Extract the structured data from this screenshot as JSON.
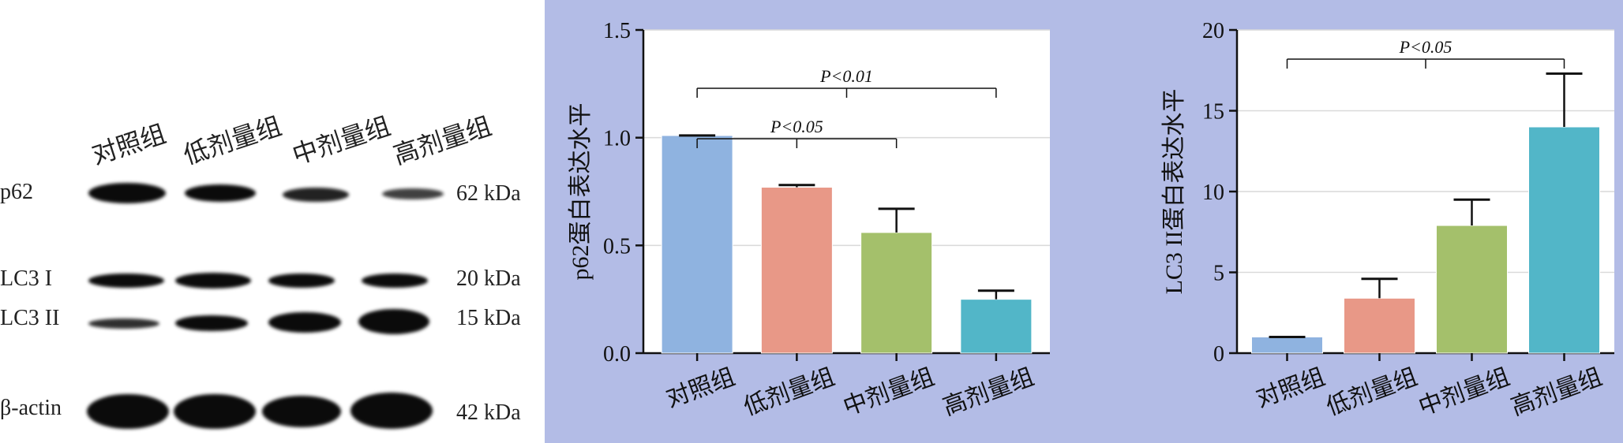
{
  "blot": {
    "lanes": [
      "对照组",
      "低剂量组",
      "中剂量组",
      "高剂量组"
    ],
    "rows": [
      {
        "label": "p62",
        "kda": "62 kDa"
      },
      {
        "label": "LC3 I",
        "kda": "20 kDa"
      },
      {
        "label": "LC3 II",
        "kda": "15 kDa"
      },
      {
        "label": "β-actin",
        "kda": "42 kDa"
      }
    ]
  },
  "chart_data": [
    {
      "type": "bar",
      "ylabel": "p62蛋白表达水平",
      "xlabel": "",
      "categories": [
        "对照组",
        "低剂量组",
        "中剂量组",
        "高剂量组"
      ],
      "values": [
        1.01,
        0.77,
        0.56,
        0.25
      ],
      "errors": [
        0.0,
        0.01,
        0.11,
        0.04
      ],
      "colors": [
        "#8fb3e0",
        "#e89887",
        "#a4c06b",
        "#52b6c8"
      ],
      "ylim": [
        0,
        1.5
      ],
      "yticks": [
        "0.0",
        "0.5",
        "1.0",
        "1.5"
      ],
      "grid": true,
      "significance": [
        {
          "text": "P<0.01",
          "from": 0,
          "to": 3
        },
        {
          "text": "P<0.05",
          "from": 0,
          "to": 2
        }
      ]
    },
    {
      "type": "bar",
      "ylabel": "LC3 II蛋白表达水平",
      "xlabel": "",
      "categories": [
        "对照组",
        "低剂量组",
        "中剂量组",
        "高剂量组"
      ],
      "values": [
        1.0,
        3.4,
        7.9,
        14.0
      ],
      "errors": [
        0.0,
        1.2,
        1.6,
        3.3
      ],
      "colors": [
        "#8fb3e0",
        "#e89887",
        "#a4c06b",
        "#52b6c8"
      ],
      "ylim": [
        0,
        20
      ],
      "yticks": [
        "0",
        "5",
        "10",
        "15",
        "20"
      ],
      "grid": true,
      "significance": [
        {
          "text": "P<0.05",
          "from": 0,
          "to": 3
        }
      ]
    }
  ]
}
